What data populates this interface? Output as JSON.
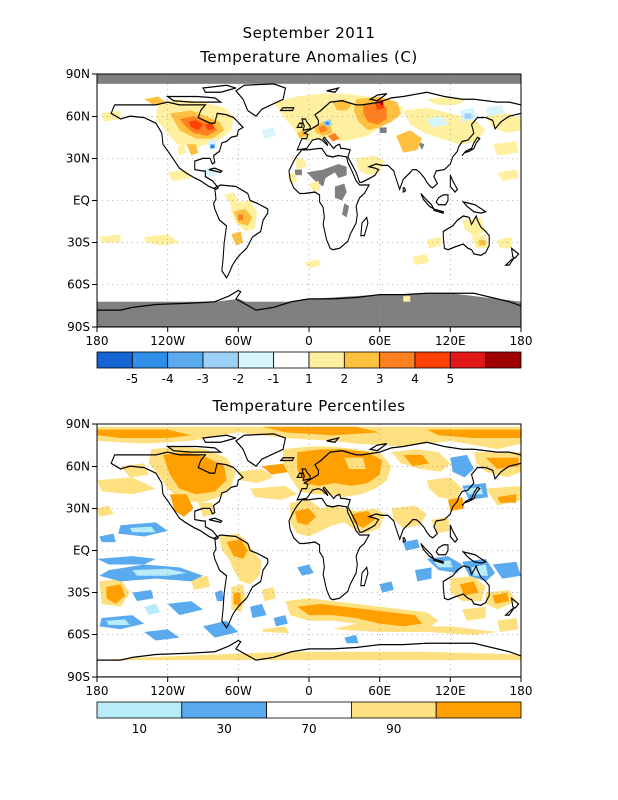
{
  "header": {
    "date": "September 2011",
    "anomaly_title": "Temperature Anomalies (C)",
    "percentile_title": "Temperature Percentiles"
  },
  "axes": {
    "lat_labels": [
      "90N",
      "60N",
      "30N",
      "EQ",
      "30S",
      "60S",
      "90S"
    ],
    "lon_labels": [
      "180",
      "120W",
      "60W",
      "0",
      "60E",
      "120E",
      "180"
    ]
  },
  "anomaly_legend": {
    "colors": [
      "#1464d2",
      "#2f8ee8",
      "#5aaaf0",
      "#9cd2f8",
      "#d8f4fc",
      "#ffffff",
      "#fff0a0",
      "#ffc040",
      "#ff8020",
      "#ff4000",
      "#e01818",
      "#a00000"
    ],
    "tick_labels": [
      "-5",
      "-4",
      "-3",
      "-2",
      "-1",
      "1",
      "2",
      "3",
      "4",
      "5"
    ]
  },
  "percentile_legend": {
    "colors": [
      "#b8ecf8",
      "#5aaaf0",
      "#ffffff",
      "#ffe080",
      "#ffa000"
    ],
    "tick_labels": [
      "10",
      "30",
      "70",
      "90"
    ]
  },
  "colors": {
    "missing_gray": "#808080",
    "grid": "#999999",
    "coast": "#000000"
  }
}
